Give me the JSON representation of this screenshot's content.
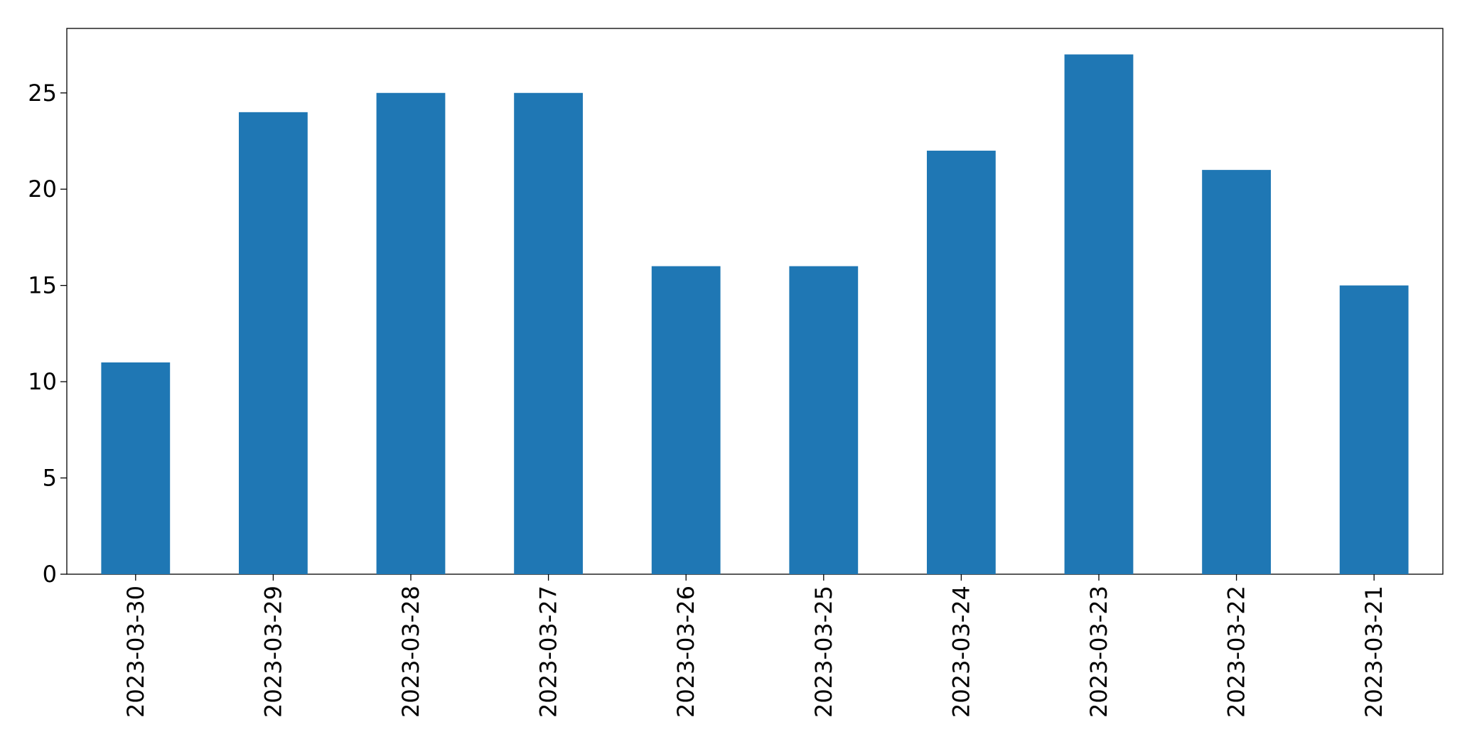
{
  "chart_data": {
    "type": "bar",
    "categories": [
      "2023-03-30",
      "2023-03-29",
      "2023-03-28",
      "2023-03-27",
      "2023-03-26",
      "2023-03-25",
      "2023-03-24",
      "2023-03-23",
      "2023-03-22",
      "2023-03-21"
    ],
    "values": [
      11,
      24,
      25,
      25,
      16,
      16,
      22,
      27,
      21,
      15
    ],
    "color": "#1f77b4",
    "ylim": [
      0,
      28.35
    ],
    "yticks": [
      0,
      5,
      10,
      15,
      20,
      25
    ],
    "grid": false
  }
}
